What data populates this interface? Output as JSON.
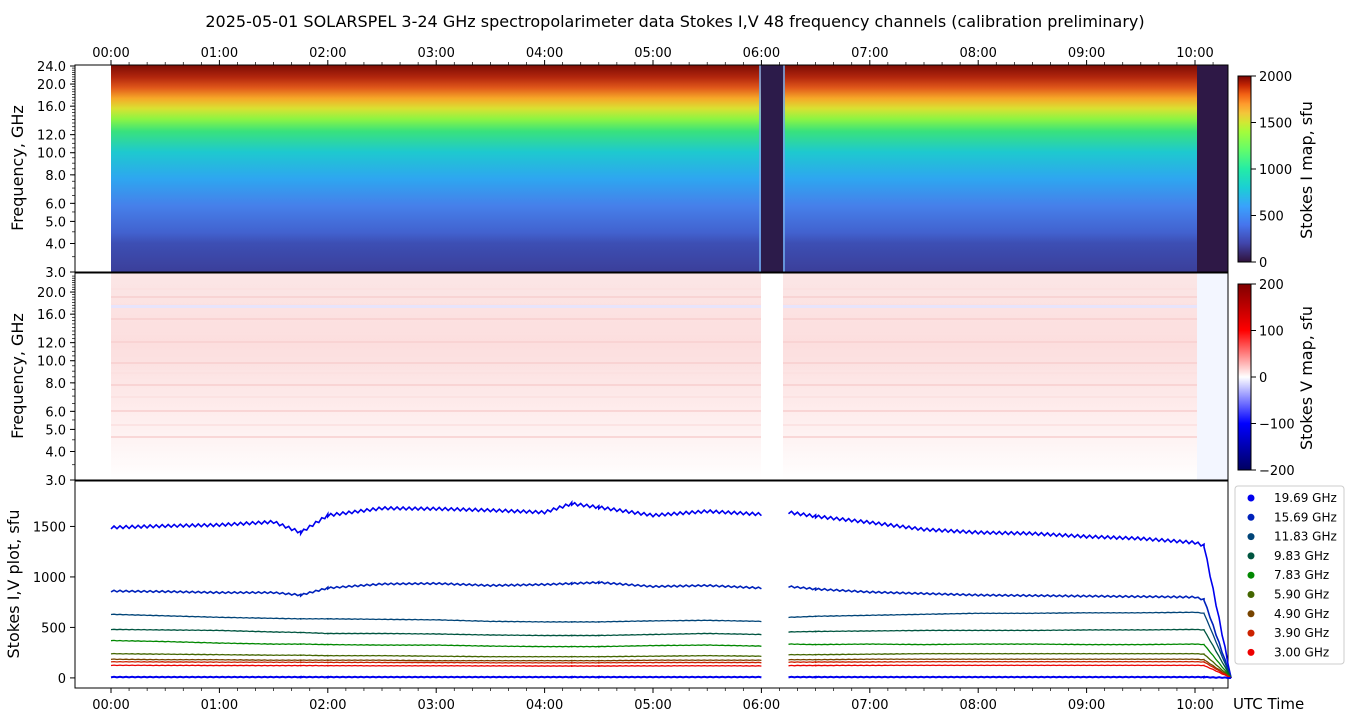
{
  "title": "2025-05-01  SOLARSPEL  3-24 GHz spectropolarimeter data   Stokes I,V   48 frequency channels   (calibration preliminary)",
  "time_ticks": [
    "00:00",
    "01:00",
    "02:00",
    "03:00",
    "04:00",
    "05:00",
    "06:00",
    "07:00",
    "08:00",
    "09:00",
    "10:00"
  ],
  "x_axis_label": "UTC Time",
  "panel_i": {
    "ylabel": "Frequency, GHz",
    "freq_ticks": [
      "24.0",
      "20.0",
      "16.0",
      "12.0",
      "10.0",
      "8.0",
      "6.0",
      "5.0",
      "4.0",
      "3.0"
    ],
    "colorbar_label": "Stokes I map, sfu",
    "colorbar_ticks": [
      "2000",
      "1500",
      "1000",
      "500",
      "0"
    ]
  },
  "panel_v": {
    "ylabel": "Frequency, GHz",
    "freq_ticks": [
      "20.0",
      "16.0",
      "12.0",
      "10.0",
      "8.0",
      "6.0",
      "5.0",
      "4.0",
      "3.0"
    ],
    "colorbar_label": "Stokes V map, sfu",
    "colorbar_ticks": [
      "200",
      "100",
      "0",
      "−100",
      "−200"
    ]
  },
  "chart_data": {
    "type": "scatter",
    "title": "2025-05-01  SOLARSPEL  3-24 GHz spectropolarimeter data   Stokes I,V   48 frequency channels   (calibration preliminary)",
    "xlabel": "UTC Time",
    "ylabel": "Stokes I,V plot, sfu",
    "x": [
      "00:00",
      "00:30",
      "01:00",
      "01:30",
      "01:45",
      "02:00",
      "02:30",
      "03:00",
      "03:30",
      "04:00",
      "04:15",
      "04:30",
      "05:00",
      "05:30",
      "06:00",
      "06:15",
      "06:30",
      "07:00",
      "07:30",
      "08:00",
      "08:30",
      "09:00",
      "09:30",
      "10:00",
      "10:05",
      "10:20"
    ],
    "ylim": [
      -100,
      1950
    ],
    "yticks": [
      "0",
      "500",
      "1000",
      "1500"
    ],
    "data_gap": [
      "06:00",
      "06:12"
    ],
    "legend_position": "right",
    "series": [
      {
        "name": "19.69 GHz",
        "color": "#0000ee",
        "values": [
          1490,
          1505,
          1515,
          1545,
          1440,
          1610,
          1680,
          1675,
          1660,
          1640,
          1725,
          1690,
          1610,
          1650,
          1620,
          1640,
          1600,
          1540,
          1470,
          1440,
          1430,
          1400,
          1380,
          1340,
          1310,
          0
        ]
      },
      {
        "name": "15.69 GHz",
        "color": "#0022bb",
        "values": [
          860,
          855,
          845,
          845,
          820,
          890,
          930,
          935,
          915,
          925,
          935,
          945,
          905,
          915,
          890,
          905,
          880,
          850,
          835,
          820,
          815,
          810,
          805,
          800,
          775,
          0
        ]
      },
      {
        "name": "11.83 GHz",
        "color": "#004478",
        "values": [
          630,
          615,
          600,
          590,
          585,
          585,
          580,
          575,
          560,
          555,
          555,
          555,
          565,
          570,
          560,
          600,
          610,
          620,
          630,
          640,
          640,
          645,
          645,
          650,
          640,
          0
        ]
      },
      {
        "name": "9.83 GHz",
        "color": "#005540",
        "values": [
          480,
          475,
          470,
          455,
          450,
          440,
          440,
          435,
          425,
          420,
          420,
          420,
          430,
          440,
          430,
          455,
          460,
          465,
          470,
          470,
          470,
          475,
          475,
          480,
          475,
          0
        ]
      },
      {
        "name": "7.83 GHz",
        "color": "#008800",
        "values": [
          370,
          360,
          345,
          335,
          335,
          330,
          325,
          325,
          315,
          310,
          310,
          310,
          320,
          325,
          315,
          335,
          330,
          335,
          330,
          335,
          335,
          330,
          330,
          335,
          330,
          0
        ]
      },
      {
        "name": "5.90 GHz",
        "color": "#446600",
        "values": [
          240,
          235,
          230,
          225,
          225,
          220,
          220,
          215,
          210,
          210,
          210,
          210,
          215,
          220,
          215,
          230,
          230,
          235,
          240,
          240,
          240,
          240,
          240,
          240,
          235,
          0
        ]
      },
      {
        "name": "4.90 GHz",
        "color": "#774400",
        "values": [
          185,
          180,
          180,
          175,
          175,
          175,
          175,
          170,
          170,
          170,
          170,
          170,
          175,
          175,
          175,
          180,
          180,
          185,
          185,
          185,
          185,
          185,
          185,
          185,
          180,
          0
        ]
      },
      {
        "name": "3.90 GHz",
        "color": "#cc2200",
        "values": [
          160,
          158,
          156,
          155,
          155,
          154,
          153,
          152,
          150,
          150,
          150,
          150,
          152,
          153,
          152,
          156,
          157,
          158,
          160,
          160,
          160,
          160,
          160,
          160,
          158,
          0
        ]
      },
      {
        "name": "3.00 GHz",
        "color": "#ee0000",
        "values": [
          125,
          124,
          123,
          122,
          122,
          121,
          120,
          120,
          119,
          118,
          118,
          118,
          119,
          120,
          119,
          122,
          123,
          124,
          125,
          125,
          125,
          125,
          125,
          125,
          123,
          0
        ]
      }
    ],
    "stokes_v": [
      {
        "name": "19.69 GHz",
        "color": "#0000ee",
        "values": [
          8,
          8,
          8,
          8,
          8,
          8,
          8,
          8,
          8,
          8,
          8,
          8,
          8,
          8,
          8,
          8,
          8,
          8,
          8,
          8,
          8,
          8,
          8,
          8,
          8,
          0
        ]
      }
    ]
  }
}
